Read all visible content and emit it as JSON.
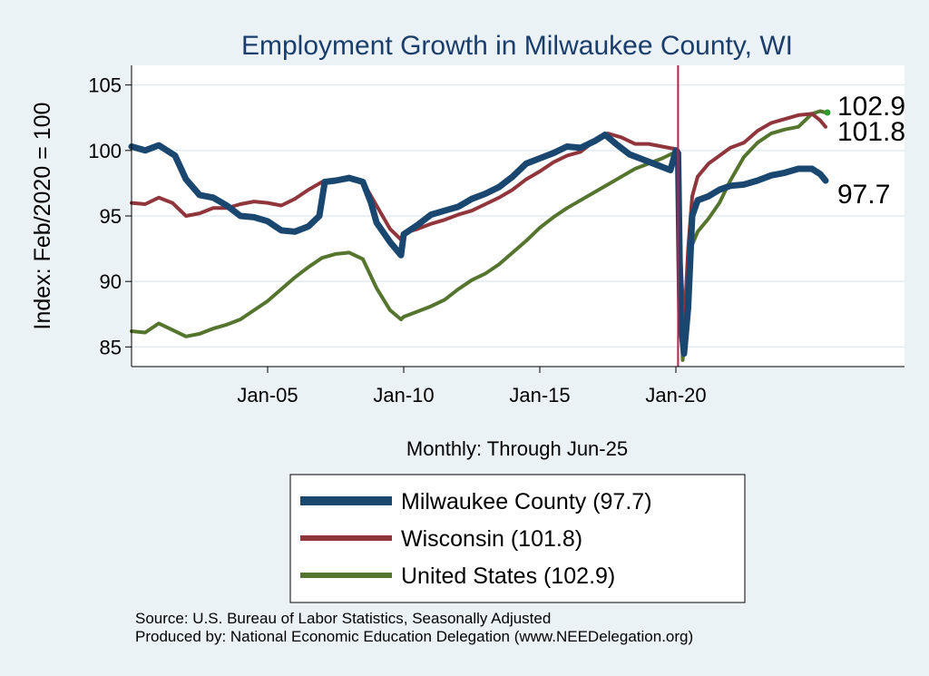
{
  "chart_data": {
    "type": "line",
    "title": "Employment Growth in Milwaukee  County, WI",
    "xlabel": "Monthly: Through Jun-25",
    "ylabel": "Index: Feb/2020 = 100",
    "ylim": [
      83.5,
      106.5
    ],
    "xlim": [
      2000.0,
      2028.4
    ],
    "y_ticks": [
      85,
      90,
      95,
      100,
      105
    ],
    "x_ticks": [
      {
        "value": 2005.0,
        "label": "Jan-05"
      },
      {
        "value": 2010.0,
        "label": "Jan-10"
      },
      {
        "value": 2015.0,
        "label": "Jan-15"
      },
      {
        "value": 2020.0,
        "label": "Jan-20"
      }
    ],
    "vline": {
      "x": 2020.08,
      "color": "#b5224a"
    },
    "grid": true,
    "legend_position": "bottom",
    "series": [
      {
        "name": "Milwaukee  County",
        "legend_label": "Milwaukee  County (97.7)",
        "color": "#1a476f",
        "width": 7,
        "end_label": "97.7",
        "points": [
          [
            2000.0,
            100.3
          ],
          [
            2000.5,
            100.0
          ],
          [
            2001.0,
            100.4
          ],
          [
            2001.6,
            99.6
          ],
          [
            2002.0,
            97.8
          ],
          [
            2002.5,
            96.6
          ],
          [
            2003.0,
            96.4
          ],
          [
            2003.5,
            95.8
          ],
          [
            2004.0,
            95.0
          ],
          [
            2004.5,
            94.9
          ],
          [
            2005.0,
            94.6
          ],
          [
            2005.5,
            93.9
          ],
          [
            2006.0,
            93.8
          ],
          [
            2006.5,
            94.2
          ],
          [
            2006.9,
            95.0
          ],
          [
            2007.1,
            97.6
          ],
          [
            2007.5,
            97.7
          ],
          [
            2008.0,
            97.9
          ],
          [
            2008.5,
            97.6
          ],
          [
            2008.8,
            96.0
          ],
          [
            2009.0,
            94.5
          ],
          [
            2009.5,
            93.0
          ],
          [
            2009.9,
            92.0
          ],
          [
            2010.0,
            93.6
          ],
          [
            2010.5,
            94.3
          ],
          [
            2011.0,
            95.1
          ],
          [
            2011.5,
            95.4
          ],
          [
            2012.0,
            95.7
          ],
          [
            2012.5,
            96.3
          ],
          [
            2013.0,
            96.7
          ],
          [
            2013.5,
            97.2
          ],
          [
            2014.0,
            98.0
          ],
          [
            2014.5,
            99.0
          ],
          [
            2015.0,
            99.4
          ],
          [
            2015.5,
            99.8
          ],
          [
            2016.0,
            100.3
          ],
          [
            2016.5,
            100.2
          ],
          [
            2017.0,
            100.7
          ],
          [
            2017.4,
            101.2
          ],
          [
            2017.8,
            100.5
          ],
          [
            2018.3,
            99.7
          ],
          [
            2018.8,
            99.3
          ],
          [
            2019.3,
            98.9
          ],
          [
            2019.8,
            98.5
          ],
          [
            2020.0,
            100.0
          ],
          [
            2020.08,
            99.8
          ],
          [
            2020.17,
            87.0
          ],
          [
            2020.3,
            84.5
          ],
          [
            2020.45,
            88.0
          ],
          [
            2020.6,
            95.0
          ],
          [
            2020.8,
            96.2
          ],
          [
            2021.2,
            96.5
          ],
          [
            2021.6,
            97.0
          ],
          [
            2022.0,
            97.3
          ],
          [
            2022.5,
            97.4
          ],
          [
            2023.0,
            97.7
          ],
          [
            2023.5,
            98.1
          ],
          [
            2024.0,
            98.3
          ],
          [
            2024.5,
            98.6
          ],
          [
            2025.0,
            98.6
          ],
          [
            2025.3,
            98.2
          ],
          [
            2025.5,
            97.7
          ]
        ]
      },
      {
        "name": "Wisconsin",
        "legend_label": "Wisconsin (101.8)",
        "color": "#90353b",
        "width": 4,
        "end_label": "101.8",
        "points": [
          [
            2000.0,
            96.0
          ],
          [
            2000.5,
            95.9
          ],
          [
            2001.0,
            96.4
          ],
          [
            2001.5,
            96.0
          ],
          [
            2002.0,
            95.0
          ],
          [
            2002.5,
            95.2
          ],
          [
            2003.0,
            95.6
          ],
          [
            2003.5,
            95.6
          ],
          [
            2004.0,
            95.9
          ],
          [
            2004.5,
            96.1
          ],
          [
            2005.0,
            96.0
          ],
          [
            2005.5,
            95.8
          ],
          [
            2006.0,
            96.3
          ],
          [
            2006.5,
            97.0
          ],
          [
            2007.0,
            97.6
          ],
          [
            2007.5,
            97.7
          ],
          [
            2008.0,
            98.0
          ],
          [
            2008.5,
            97.6
          ],
          [
            2009.0,
            95.8
          ],
          [
            2009.5,
            94.0
          ],
          [
            2009.9,
            93.2
          ],
          [
            2010.0,
            93.7
          ],
          [
            2010.5,
            94.0
          ],
          [
            2011.0,
            94.4
          ],
          [
            2011.5,
            94.7
          ],
          [
            2012.0,
            95.1
          ],
          [
            2012.5,
            95.4
          ],
          [
            2013.0,
            95.9
          ],
          [
            2013.5,
            96.4
          ],
          [
            2014.0,
            97.0
          ],
          [
            2014.5,
            97.8
          ],
          [
            2015.0,
            98.4
          ],
          [
            2015.5,
            99.1
          ],
          [
            2016.0,
            99.6
          ],
          [
            2016.5,
            99.9
          ],
          [
            2017.0,
            100.7
          ],
          [
            2017.5,
            101.3
          ],
          [
            2018.0,
            101.0
          ],
          [
            2018.5,
            100.5
          ],
          [
            2019.0,
            100.5
          ],
          [
            2019.5,
            100.3
          ],
          [
            2020.0,
            100.1
          ],
          [
            2020.08,
            100.0
          ],
          [
            2020.17,
            92.0
          ],
          [
            2020.3,
            86.5
          ],
          [
            2020.45,
            92.5
          ],
          [
            2020.6,
            96.5
          ],
          [
            2020.8,
            98.0
          ],
          [
            2021.2,
            99.0
          ],
          [
            2021.6,
            99.6
          ],
          [
            2022.0,
            100.2
          ],
          [
            2022.5,
            100.6
          ],
          [
            2023.0,
            101.5
          ],
          [
            2023.5,
            102.1
          ],
          [
            2024.0,
            102.4
          ],
          [
            2024.5,
            102.7
          ],
          [
            2025.0,
            102.8
          ],
          [
            2025.3,
            102.3
          ],
          [
            2025.5,
            101.8
          ]
        ]
      },
      {
        "name": "United States",
        "legend_label": "United States (102.9)",
        "color": "#55752f",
        "width": 4,
        "end_label": "102.9",
        "points": [
          [
            2000.0,
            86.2
          ],
          [
            2000.5,
            86.1
          ],
          [
            2001.0,
            86.8
          ],
          [
            2001.5,
            86.3
          ],
          [
            2002.0,
            85.8
          ],
          [
            2002.5,
            86.0
          ],
          [
            2003.0,
            86.4
          ],
          [
            2003.5,
            86.7
          ],
          [
            2004.0,
            87.1
          ],
          [
            2004.5,
            87.8
          ],
          [
            2005.0,
            88.5
          ],
          [
            2005.5,
            89.4
          ],
          [
            2006.0,
            90.3
          ],
          [
            2006.5,
            91.1
          ],
          [
            2007.0,
            91.8
          ],
          [
            2007.5,
            92.1
          ],
          [
            2008.0,
            92.2
          ],
          [
            2008.5,
            91.7
          ],
          [
            2009.0,
            89.5
          ],
          [
            2009.5,
            87.8
          ],
          [
            2009.9,
            87.1
          ],
          [
            2010.0,
            87.3
          ],
          [
            2010.5,
            87.7
          ],
          [
            2011.0,
            88.1
          ],
          [
            2011.5,
            88.6
          ],
          [
            2012.0,
            89.4
          ],
          [
            2012.5,
            90.1
          ],
          [
            2013.0,
            90.6
          ],
          [
            2013.5,
            91.3
          ],
          [
            2014.0,
            92.2
          ],
          [
            2014.5,
            93.1
          ],
          [
            2015.0,
            94.1
          ],
          [
            2015.5,
            94.9
          ],
          [
            2016.0,
            95.6
          ],
          [
            2016.5,
            96.2
          ],
          [
            2017.0,
            96.8
          ],
          [
            2017.5,
            97.4
          ],
          [
            2018.0,
            98.0
          ],
          [
            2018.5,
            98.6
          ],
          [
            2019.0,
            99.0
          ],
          [
            2019.5,
            99.4
          ],
          [
            2020.0,
            99.9
          ],
          [
            2020.08,
            100.0
          ],
          [
            2020.17,
            90.0
          ],
          [
            2020.25,
            84.0
          ],
          [
            2020.45,
            89.0
          ],
          [
            2020.6,
            92.8
          ],
          [
            2020.8,
            93.8
          ],
          [
            2021.2,
            94.8
          ],
          [
            2021.6,
            96.0
          ],
          [
            2022.0,
            97.7
          ],
          [
            2022.5,
            99.5
          ],
          [
            2023.0,
            100.6
          ],
          [
            2023.5,
            101.3
          ],
          [
            2024.0,
            101.6
          ],
          [
            2024.5,
            101.8
          ],
          [
            2025.0,
            102.8
          ],
          [
            2025.3,
            103.0
          ],
          [
            2025.5,
            102.9
          ]
        ]
      }
    ]
  },
  "source": {
    "line1": "Source: U.S. Bureau of Labor Statistics, Seasonally Adjusted",
    "line2": "Produced by: National Economic Education Delegation (www.NEEDelegation.org)"
  }
}
